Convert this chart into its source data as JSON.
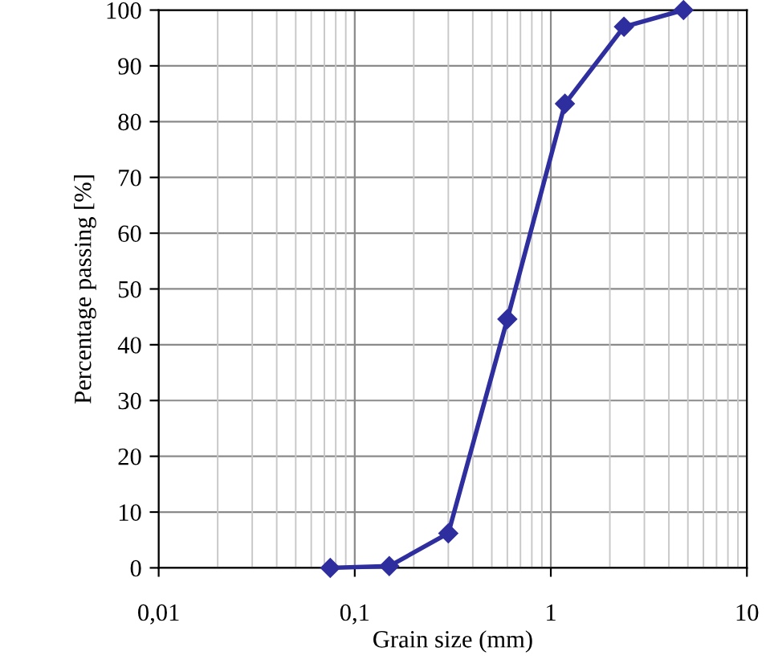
{
  "chart_data": {
    "type": "line",
    "xlabel": "Grain size (mm)",
    "ylabel": "Percentage passing [%]",
    "x": [
      0.075,
      0.15,
      0.3,
      0.6,
      1.18,
      2.36,
      4.75
    ],
    "series": [
      {
        "color": "#2e2e9e",
        "values": [
          0,
          0.3,
          6.2,
          44.6,
          83.2,
          97,
          100
        ]
      }
    ],
    "log": "x",
    "xlim": [
      0.01,
      10
    ],
    "ylim": [
      0,
      100
    ],
    "xticks": [
      {
        "value": 0.01,
        "label": "0,01"
      },
      {
        "value": 0.1,
        "label": "0,1"
      },
      1,
      10
    ],
    "yticks": [
      0,
      10,
      20,
      30,
      40,
      50,
      60,
      70,
      80,
      90,
      100
    ],
    "grid": true,
    "marker": "diamond",
    "line_style": "solid"
  }
}
